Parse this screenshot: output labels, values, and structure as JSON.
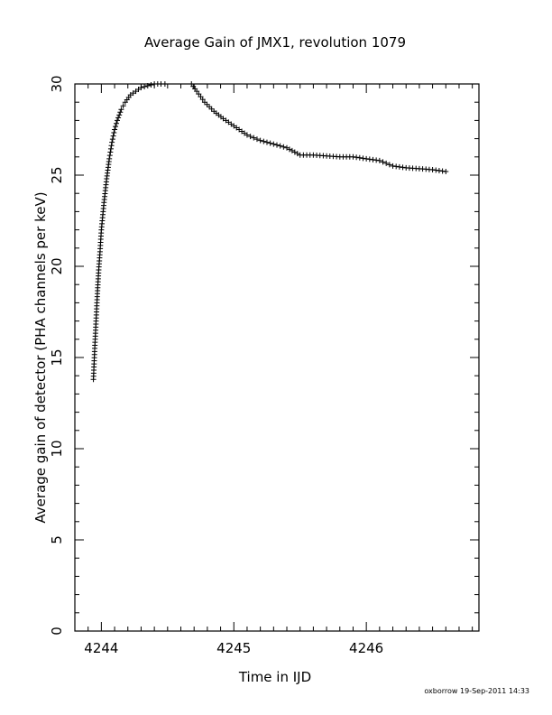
{
  "chart_data": {
    "type": "scatter",
    "title": "Average Gain of JMX1, revolution 1079",
    "xlabel": "Time in IJD",
    "ylabel": "Average gain of detector (PHA channels per keV)",
    "xlim": [
      4243.8,
      4246.85
    ],
    "ylim": [
      0,
      30
    ],
    "x_ticks": [
      "4244",
      "4245",
      "4246"
    ],
    "y_ticks": [
      "0",
      "5",
      "10",
      "15",
      "20",
      "25",
      "30"
    ],
    "marker": "plus",
    "grid": false,
    "series": [
      {
        "x": [
          4243.94,
          4243.95,
          4243.96,
          4243.97,
          4243.98,
          4243.99,
          4244.0,
          4244.02,
          4244.04,
          4244.06,
          4244.08,
          4244.1,
          4244.12,
          4244.15,
          4244.18,
          4244.22,
          4244.26,
          4244.3,
          4244.35,
          4244.4,
          4244.45,
          4244.48,
          4244.68,
          4244.72,
          4244.78,
          4244.85,
          4244.92,
          4245.0,
          4245.1,
          4245.2,
          4245.3,
          4245.4,
          4245.5,
          4245.6,
          4245.7,
          4245.8,
          4245.9,
          4246.0,
          4246.1,
          4246.2,
          4246.3,
          4246.4,
          4246.5,
          4246.6
        ],
        "y": [
          13.8,
          15.5,
          17.0,
          18.5,
          19.8,
          20.8,
          22.0,
          23.5,
          24.8,
          25.9,
          26.8,
          27.5,
          28.0,
          28.6,
          29.0,
          29.4,
          29.6,
          29.8,
          29.9,
          30.0,
          30.0,
          30.0,
          30.0,
          29.6,
          29.0,
          28.5,
          28.1,
          27.7,
          27.2,
          26.9,
          26.7,
          26.5,
          26.1,
          26.1,
          26.05,
          26.0,
          26.0,
          25.9,
          25.8,
          25.5,
          25.4,
          25.35,
          25.3,
          25.2
        ]
      }
    ]
  },
  "footer": "oxborrow 19-Sep-2011 14:33"
}
